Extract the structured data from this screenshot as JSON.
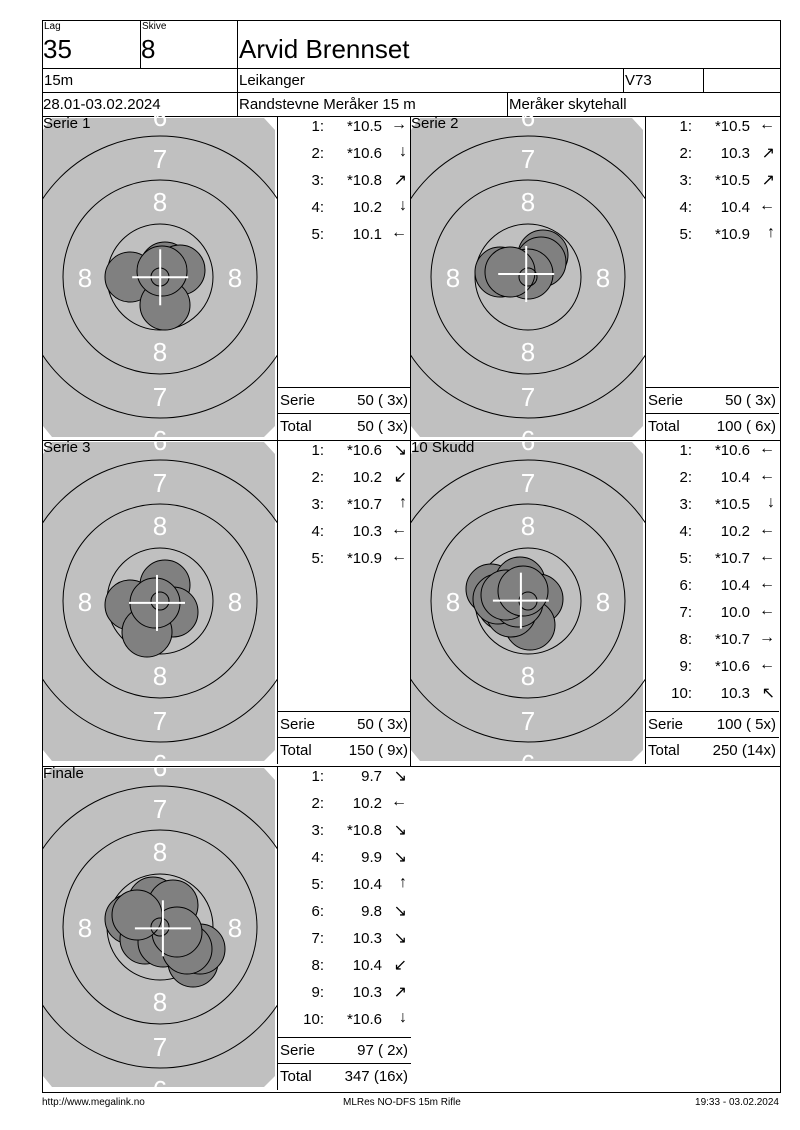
{
  "header": {
    "lag_label": "Lag",
    "lag": "35",
    "skive_label": "Skive",
    "skive": "8",
    "name": "Arvid Brennset",
    "distance": "15m",
    "club": "Leikanger",
    "class": "V73",
    "class_extra": "",
    "date": "28.01-03.02.2024",
    "event": "Randstevne Meråker 15 m",
    "venue": "Meråker skytehall"
  },
  "target_labels": {
    "seven": "7",
    "eight": "8",
    "six": "6"
  },
  "colors": {
    "target_bg": "#c0c0c0",
    "shot": "#808080",
    "ring_number": "#ffffff"
  },
  "panels": [
    {
      "title": "Serie 1",
      "shots": [
        {
          "n": "1:",
          "v": "*10.5",
          "dir": "right"
        },
        {
          "n": "2:",
          "v": "*10.6",
          "dir": "down"
        },
        {
          "n": "3:",
          "v": "*10.8",
          "dir": "up-right"
        },
        {
          "n": "4:",
          "v": "10.2",
          "dir": "down"
        },
        {
          "n": "5:",
          "v": "10.1",
          "dir": "left"
        }
      ],
      "serie_label": "Serie",
      "serie": "50 ( 3x)",
      "total_label": "Total",
      "total": "50 ( 3x)"
    },
    {
      "title": "Serie 2",
      "shots": [
        {
          "n": "1:",
          "v": "*10.5",
          "dir": "left"
        },
        {
          "n": "2:",
          "v": "10.3",
          "dir": "up-right"
        },
        {
          "n": "3:",
          "v": "*10.5",
          "dir": "up-right"
        },
        {
          "n": "4:",
          "v": "10.4",
          "dir": "left"
        },
        {
          "n": "5:",
          "v": "*10.9",
          "dir": "up"
        }
      ],
      "serie_label": "Serie",
      "serie": "50 ( 3x)",
      "total_label": "Total",
      "total": "100 ( 6x)"
    },
    {
      "title": "Serie 3",
      "shots": [
        {
          "n": "1:",
          "v": "*10.6",
          "dir": "down-right"
        },
        {
          "n": "2:",
          "v": "10.2",
          "dir": "down-left"
        },
        {
          "n": "3:",
          "v": "*10.7",
          "dir": "up"
        },
        {
          "n": "4:",
          "v": "10.3",
          "dir": "left"
        },
        {
          "n": "5:",
          "v": "*10.9",
          "dir": "left"
        }
      ],
      "serie_label": "Serie",
      "serie": "50 ( 3x)",
      "total_label": "Total",
      "total": "150 ( 9x)"
    },
    {
      "title": "10 Skudd",
      "shots": [
        {
          "n": "1:",
          "v": "*10.6",
          "dir": "left"
        },
        {
          "n": "2:",
          "v": "10.4",
          "dir": "left"
        },
        {
          "n": "3:",
          "v": "*10.5",
          "dir": "down"
        },
        {
          "n": "4:",
          "v": "10.2",
          "dir": "left"
        },
        {
          "n": "5:",
          "v": "*10.7",
          "dir": "left"
        },
        {
          "n": "6:",
          "v": "10.4",
          "dir": "left"
        },
        {
          "n": "7:",
          "v": "10.0",
          "dir": "left"
        },
        {
          "n": "8:",
          "v": "*10.7",
          "dir": "right"
        },
        {
          "n": "9:",
          "v": "*10.6",
          "dir": "left"
        },
        {
          "n": "10:",
          "v": "10.3",
          "dir": "up-left"
        }
      ],
      "serie_label": "Serie",
      "serie": "100 ( 5x)",
      "total_label": "Total",
      "total": "250 (14x)"
    },
    {
      "title": "Finale",
      "shots": [
        {
          "n": "1:",
          "v": "9.7",
          "dir": "down-right"
        },
        {
          "n": "2:",
          "v": "10.2",
          "dir": "left"
        },
        {
          "n": "3:",
          "v": "*10.8",
          "dir": "down-right"
        },
        {
          "n": "4:",
          "v": "9.9",
          "dir": "down-right"
        },
        {
          "n": "5:",
          "v": "10.4",
          "dir": "up"
        },
        {
          "n": "6:",
          "v": "9.8",
          "dir": "down-right"
        },
        {
          "n": "7:",
          "v": "10.3",
          "dir": "down-right"
        },
        {
          "n": "8:",
          "v": "10.4",
          "dir": "down-left"
        },
        {
          "n": "9:",
          "v": "10.3",
          "dir": "up-right"
        },
        {
          "n": "10:",
          "v": "*10.6",
          "dir": "down"
        }
      ],
      "serie_label": "Serie",
      "serie": "97 ( 2x)",
      "total_label": "Total",
      "total": "347 (16x)"
    }
  ],
  "footer": {
    "url": "http://www.megalink.no",
    "software": "MLRes NO-DFS 15m Rifle",
    "timestamp": "19:33 - 03.02.2024"
  }
}
